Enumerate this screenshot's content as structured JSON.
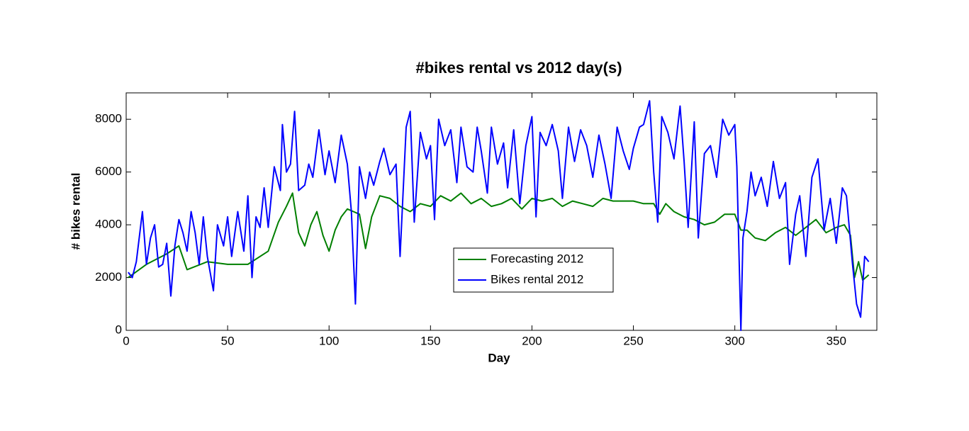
{
  "chart_data": {
    "type": "line",
    "title": "#bikes rental vs 2012 day(s)",
    "x_label": "Day",
    "y_label": "# bikes rental",
    "xlim": [
      0,
      370
    ],
    "xticks": [
      0,
      50,
      100,
      150,
      200,
      250,
      300,
      350
    ],
    "ylim": [
      0,
      9000
    ],
    "yticks": [
      0,
      2000,
      4000,
      6000,
      8000
    ],
    "grid": false,
    "legend": "center",
    "series": [
      {
        "name": "Forecasting 2012",
        "color": "#007f00",
        "x": [
          1,
          10,
          20,
          26,
          30,
          40,
          50,
          60,
          70,
          75,
          79,
          82,
          85,
          88,
          91,
          94,
          97,
          100,
          103,
          106,
          109,
          112,
          115,
          118,
          121,
          125,
          130,
          135,
          140,
          145,
          150,
          155,
          160,
          165,
          170,
          175,
          180,
          185,
          190,
          195,
          200,
          205,
          210,
          215,
          220,
          225,
          230,
          235,
          240,
          245,
          250,
          255,
          260,
          263,
          266,
          270,
          275,
          280,
          285,
          290,
          295,
          300,
          303,
          306,
          310,
          315,
          320,
          325,
          330,
          335,
          340,
          345,
          350,
          354,
          357,
          359,
          361,
          363,
          366
        ],
        "values": [
          2000,
          2500,
          2900,
          3200,
          2300,
          2600,
          2500,
          2500,
          3000,
          4100,
          4700,
          5200,
          3700,
          3200,
          4000,
          4500,
          3600,
          3000,
          3800,
          4300,
          4600,
          4500,
          4400,
          3100,
          4300,
          5100,
          5000,
          4700,
          4500,
          4800,
          4700,
          5100,
          4900,
          5200,
          4800,
          5000,
          4700,
          4800,
          5000,
          4600,
          5000,
          4900,
          5000,
          4700,
          4900,
          4800,
          4700,
          5000,
          4900,
          4900,
          4900,
          4800,
          4800,
          4400,
          4800,
          4500,
          4300,
          4200,
          4000,
          4100,
          4400,
          4400,
          3800,
          3800,
          3500,
          3400,
          3700,
          3900,
          3600,
          3900,
          4200,
          3700,
          3900,
          4000,
          3600,
          2000,
          2600,
          1900,
          2100
        ]
      },
      {
        "name": "Bikes rental 2012",
        "color": "#0000ff",
        "x": [
          1,
          3,
          5,
          8,
          10,
          12,
          14,
          16,
          18,
          20,
          22,
          24,
          26,
          28,
          30,
          32,
          34,
          36,
          38,
          40,
          43,
          45,
          48,
          50,
          52,
          55,
          58,
          60,
          62,
          64,
          66,
          68,
          70,
          73,
          76,
          77,
          79,
          81,
          83,
          85,
          88,
          90,
          92,
          95,
          98,
          100,
          103,
          106,
          109,
          111,
          113,
          115,
          118,
          120,
          122,
          125,
          127,
          130,
          133,
          135,
          138,
          140,
          142,
          145,
          148,
          150,
          152,
          154,
          157,
          160,
          163,
          165,
          168,
          171,
          173,
          175,
          178,
          180,
          183,
          186,
          188,
          191,
          194,
          197,
          200,
          202,
          204,
          207,
          210,
          213,
          215,
          218,
          221,
          224,
          227,
          230,
          233,
          236,
          239,
          242,
          245,
          248,
          250,
          253,
          255,
          258,
          260,
          262,
          264,
          267,
          270,
          273,
          275,
          277,
          280,
          282,
          285,
          288,
          291,
          294,
          297,
          300,
          301,
          303,
          304,
          306,
          308,
          310,
          313,
          316,
          319,
          322,
          325,
          327,
          330,
          332,
          335,
          338,
          341,
          344,
          347,
          350,
          353,
          355,
          358,
          360,
          362,
          364,
          366
        ],
        "values": [
          2200,
          2000,
          2600,
          4500,
          2500,
          3500,
          4000,
          2400,
          2500,
          3300,
          1300,
          3200,
          4200,
          3700,
          3000,
          4500,
          3700,
          2500,
          4300,
          2800,
          1500,
          4000,
          3200,
          4300,
          2800,
          4500,
          3000,
          5100,
          2000,
          4300,
          3900,
          5400,
          3900,
          6200,
          5300,
          7800,
          6000,
          6300,
          8300,
          5300,
          5500,
          6300,
          5800,
          7600,
          5900,
          6800,
          5600,
          7400,
          6300,
          4500,
          1000,
          6200,
          5000,
          6000,
          5500,
          6400,
          6900,
          5900,
          6300,
          2800,
          7700,
          8300,
          4100,
          7500,
          6500,
          7000,
          4200,
          8000,
          7000,
          7600,
          5600,
          7700,
          6200,
          6000,
          7700,
          6800,
          5200,
          7700,
          6300,
          7100,
          5400,
          7600,
          4800,
          7000,
          8100,
          4300,
          7500,
          7000,
          7800,
          6800,
          5000,
          7700,
          6400,
          7600,
          7000,
          5800,
          7400,
          6300,
          5000,
          7700,
          6800,
          6100,
          6900,
          7700,
          7800,
          8700,
          6000,
          4100,
          8100,
          7500,
          6500,
          8500,
          6400,
          3900,
          7900,
          3500,
          6700,
          7000,
          5800,
          8000,
          7400,
          7800,
          6200,
          0,
          3500,
          4500,
          6000,
          5100,
          5800,
          4700,
          6400,
          5000,
          5600,
          2500,
          4400,
          5100,
          2800,
          5800,
          6500,
          3800,
          5000,
          3300,
          5400,
          5100,
          2500,
          1000,
          500,
          2800,
          2600
        ]
      }
    ]
  }
}
